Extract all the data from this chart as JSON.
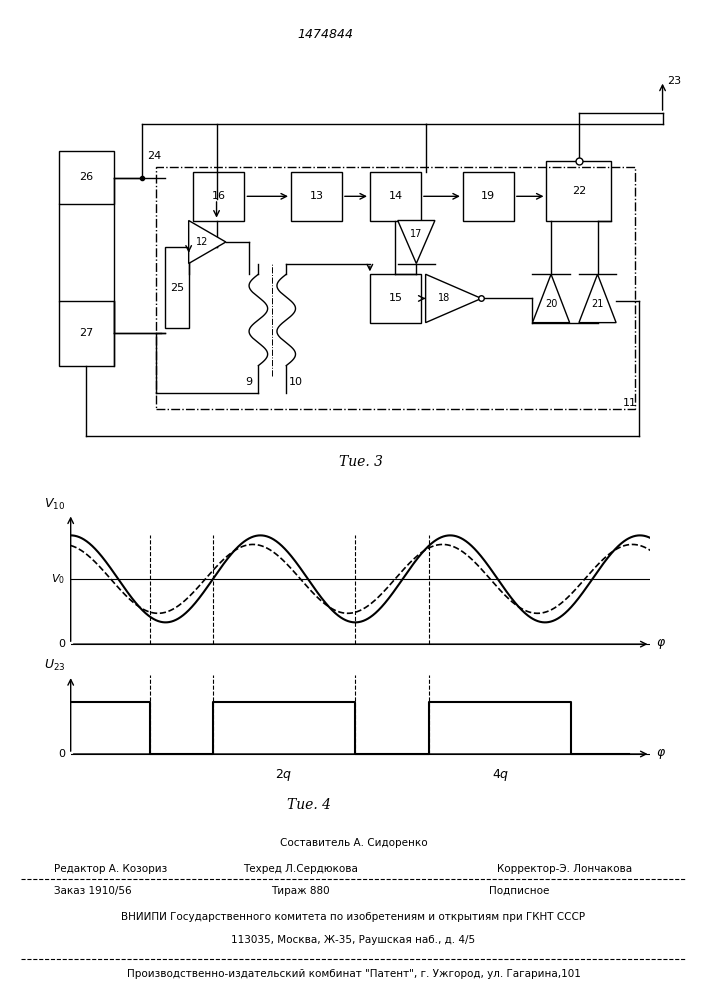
{
  "title": "1474844",
  "fig3_caption": "Τие. 3",
  "fig4_caption": "Τие. 4",
  "bg_color": "#ffffff",
  "line_color": "#000000",
  "footer_autor": "Составитель А. Сидоренко",
  "footer_editor": "Редактор А. Козориз",
  "footer_tehred": "Техред Л.Сердюкова",
  "footer_korrektor": "Корректор-Э. Лончакова",
  "footer_zakaz": "Заказ 1910/56",
  "footer_tirazh": "Тираж 880",
  "footer_podp": "Подписное",
  "footer_vnipi": "ВНИИПИ Государственного комитета по изобретениям и открытиям при ГКНТ СССР",
  "footer_addr": "113035, Москва, Ж-35, Раушская наб., д. 4/5",
  "footer_patent": "Производственно-издательский комбинат \"Патент\", г. Ужгород, ул. Гагарина,101"
}
